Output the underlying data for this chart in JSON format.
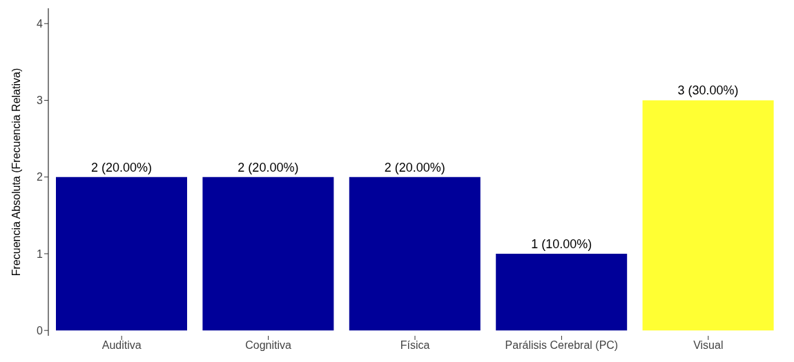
{
  "chart_data": {
    "type": "bar",
    "ylabel": "Frecuencia Absoluta (Frecuencia Relativa)",
    "categories": [
      "Auditiva",
      "Cognitiva",
      "Física",
      "Parálisis Cerebral (PC)",
      "Visual"
    ],
    "values": [
      2,
      2,
      2,
      1,
      3
    ],
    "colors": [
      "#000099",
      "#000099",
      "#000099",
      "#000099",
      "#ffff33"
    ],
    "value_labels": [
      "2 (20.00%)",
      "2 (20.00%)",
      "2 (20.00%)",
      "1 (10.00%)",
      "3 (30.00%)"
    ],
    "ylim": [
      -0.07,
      4.2
    ],
    "yticks": [
      0,
      1,
      2,
      3,
      4
    ],
    "grid": false,
    "legend": false
  }
}
